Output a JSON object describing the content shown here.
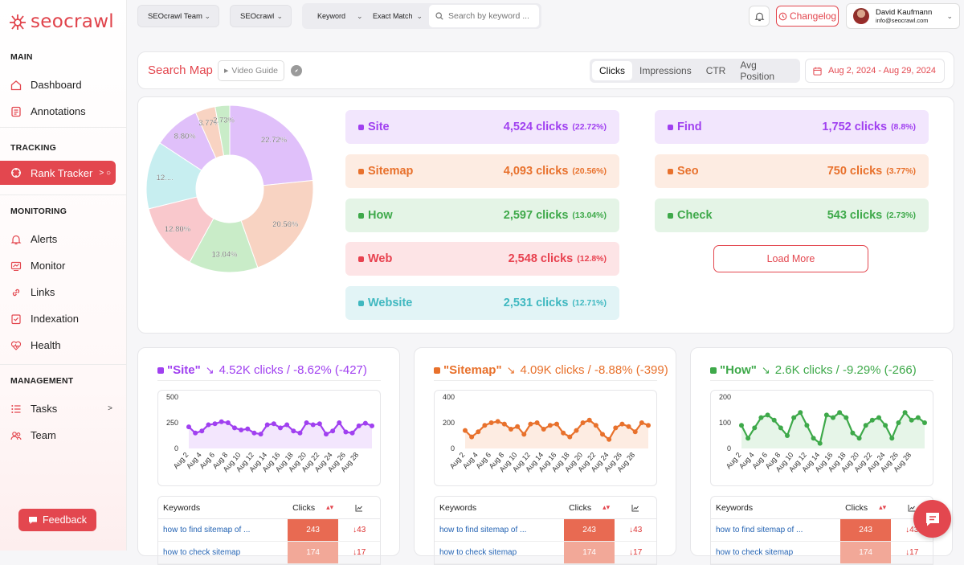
{
  "brand": {
    "name": "seocrawl",
    "color": "#e3474f"
  },
  "sidebar": {
    "sections": [
      {
        "title": "MAIN",
        "items": [
          {
            "label": "Dashboard",
            "icon": "home-icon"
          },
          {
            "label": "Annotations",
            "icon": "note-icon"
          }
        ]
      },
      {
        "title": "TRACKING",
        "items": [
          {
            "label": "Rank Tracker",
            "icon": "target-icon",
            "active": true
          }
        ]
      },
      {
        "title": "MONITORING",
        "items": [
          {
            "label": "Alerts",
            "icon": "bell-icon"
          },
          {
            "label": "Monitor",
            "icon": "monitor-icon"
          },
          {
            "label": "Links",
            "icon": "link-icon"
          },
          {
            "label": "Indexation",
            "icon": "checklist-icon"
          },
          {
            "label": "Health",
            "icon": "heart-icon"
          }
        ]
      },
      {
        "title": "MANAGEMENT",
        "items": [
          {
            "label": "Tasks",
            "icon": "tasks-icon"
          },
          {
            "label": "Team",
            "icon": "team-icon"
          }
        ]
      }
    ],
    "feedback_label": "Feedback"
  },
  "topbar": {
    "team_select": "SEOcrawl Team",
    "project_select": "SEOcrawl",
    "filter_type": "Keyword",
    "match_type": "Exact Match",
    "search_placeholder": "Search by keyword ...",
    "changelog_label": "Changelog",
    "user": {
      "name": "David Kaufmann",
      "email": "info@seocrawl.com"
    }
  },
  "header": {
    "title": "Search Map",
    "video_guide": "Video Guide",
    "tabs": [
      "Clicks",
      "Impressions",
      "CTR",
      "Avg Position"
    ],
    "active_tab": "Clicks",
    "date_range": "Aug 2, 2024 - Aug 29, 2024"
  },
  "keywords": [
    {
      "name": "Site",
      "value": "4,524 clicks",
      "pct": "(22.72%)",
      "color": "#a040f0",
      "bg": "#f2e6fd"
    },
    {
      "name": "Sitemap",
      "value": "4,093 clicks",
      "pct": "(20.56%)",
      "color": "#e8712c",
      "bg": "#fdece2"
    },
    {
      "name": "How",
      "value": "2,597 clicks",
      "pct": "(13.04%)",
      "color": "#3ea94a",
      "bg": "#e4f4e6"
    },
    {
      "name": "Web",
      "value": "2,548 clicks",
      "pct": "(12.8%)",
      "color": "#e8414f",
      "bg": "#fde4e6"
    },
    {
      "name": "Website",
      "value": "2,531 clicks",
      "pct": "(12.71%)",
      "color": "#3fb8c0",
      "bg": "#e2f4f6"
    },
    {
      "name": "Find",
      "value": "1,752 clicks",
      "pct": "(8.8%)",
      "color": "#a040f0",
      "bg": "#f2e6fd"
    },
    {
      "name": "Seo",
      "value": "750 clicks",
      "pct": "(3.77%)",
      "color": "#e8712c",
      "bg": "#fdece2"
    },
    {
      "name": "Check",
      "value": "543 clicks",
      "pct": "(2.73%)",
      "color": "#3ea94a",
      "bg": "#e4f4e6"
    }
  ],
  "load_more": "Load More",
  "chart_data": [
    {
      "type": "pie",
      "categories": [
        "Site",
        "Sitemap",
        "How",
        "Web",
        "Website",
        "Find",
        "Seo",
        "Check"
      ],
      "values": [
        22.72,
        20.56,
        13.04,
        12.8,
        12.71,
        8.8,
        3.77,
        2.73
      ],
      "labels": [
        "22.72%",
        "20.56%",
        "13.04%",
        "12.80%",
        "12....",
        "8.80%",
        "3.77%",
        "2.73%"
      ],
      "colors": [
        "#e0c0fa",
        "#f8d3c2",
        "#c9ecc8",
        "#f9c8cc",
        "#c7eef0",
        "#e0c0fa",
        "#f8d3c2",
        "#c9ecc8"
      ]
    },
    {
      "type": "line",
      "series_name": "Site",
      "color": "#a040f0",
      "fill": "#f3e6fd",
      "ylim": [
        0,
        500
      ],
      "yticks": [
        0,
        250,
        500
      ],
      "x_ticks": [
        "Aug 2",
        "Aug 4",
        "Aug 6",
        "Aug 8",
        "Aug 10",
        "Aug 12",
        "Aug 14",
        "Aug 16",
        "Aug 18",
        "Aug 20",
        "Aug 22",
        "Aug 24",
        "Aug 26",
        "Aug 28"
      ],
      "values": [
        210,
        150,
        170,
        230,
        240,
        260,
        250,
        200,
        180,
        190,
        150,
        140,
        230,
        240,
        200,
        230,
        170,
        150,
        250,
        230,
        240,
        140,
        170,
        250,
        160,
        150,
        220,
        245,
        220
      ]
    },
    {
      "type": "line",
      "series_name": "Sitemap",
      "color": "#e8712c",
      "fill": "#fdece2",
      "ylim": [
        0,
        400
      ],
      "yticks": [
        0,
        200,
        400
      ],
      "x_ticks": [
        "Aug 2",
        "Aug 4",
        "Aug 6",
        "Aug 8",
        "Aug 10",
        "Aug 12",
        "Aug 14",
        "Aug 16",
        "Aug 18",
        "Aug 20",
        "Aug 22",
        "Aug 24",
        "Aug 26",
        "Aug 28"
      ],
      "values": [
        140,
        90,
        130,
        180,
        200,
        210,
        190,
        150,
        170,
        110,
        190,
        200,
        150,
        180,
        190,
        120,
        90,
        140,
        200,
        220,
        180,
        110,
        70,
        160,
        190,
        170,
        130,
        200,
        180
      ]
    },
    {
      "type": "line",
      "series_name": "How",
      "color": "#3ea94a",
      "fill": "#e6f5e8",
      "ylim": [
        0,
        200
      ],
      "yticks": [
        0,
        100,
        200
      ],
      "x_ticks": [
        "Aug 2",
        "Aug 4",
        "Aug 6",
        "Aug 8",
        "Aug 10",
        "Aug 12",
        "Aug 14",
        "Aug 16",
        "Aug 18",
        "Aug 20",
        "Aug 22",
        "Aug 24",
        "Aug 26",
        "Aug 28"
      ],
      "values": [
        90,
        40,
        80,
        120,
        130,
        110,
        80,
        50,
        120,
        140,
        90,
        40,
        20,
        130,
        120,
        140,
        120,
        60,
        40,
        90,
        110,
        120,
        90,
        40,
        100,
        140,
        110,
        120,
        100
      ]
    }
  ],
  "trend_cards": [
    {
      "name": "\"Site\"",
      "stat": "4.52K clicks / -8.62% (-427)",
      "color": "#a040f0",
      "rows": [
        {
          "keyword": "how to find sitemap of ...",
          "clicks": "243",
          "change": "43"
        },
        {
          "keyword": "how to check sitemap",
          "clicks": "174",
          "change": "17"
        }
      ]
    },
    {
      "name": "\"Sitemap\"",
      "stat": "4.09K clicks / -8.88% (-399)",
      "color": "#e8712c",
      "rows": [
        {
          "keyword": "how to find sitemap of ...",
          "clicks": "243",
          "change": "43"
        },
        {
          "keyword": "how to check sitemap",
          "clicks": "174",
          "change": "17"
        }
      ]
    },
    {
      "name": "\"How\"",
      "stat": "2.6K clicks / -9.29% (-266)",
      "color": "#3ea94a",
      "rows": [
        {
          "keyword": "how to find sitemap of ...",
          "clicks": "243",
          "change": "43"
        },
        {
          "keyword": "how to check sitemap",
          "clicks": "174",
          "change": "17"
        }
      ]
    }
  ],
  "table_headers": {
    "keywords": "Keywords",
    "clicks": "Clicks"
  }
}
